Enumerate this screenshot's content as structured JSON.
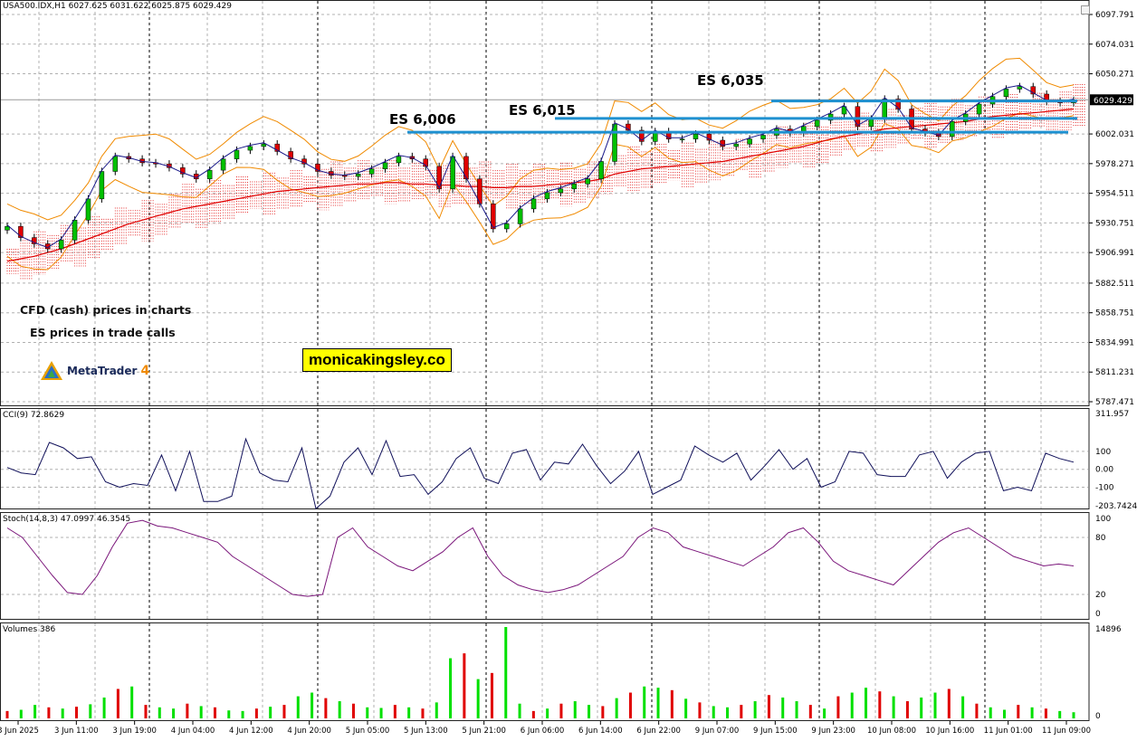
{
  "header": {
    "symbol_line": "USA500.IDX,H1  6027.625 6031.622 6025.875 6029.429"
  },
  "price_axis": {
    "labels": [
      "6097.791",
      "6074.031",
      "6050.271",
      "6029.429",
      "6002.031",
      "5978.271",
      "5954.511",
      "5930.751",
      "5906.991",
      "5882.511",
      "5858.751",
      "5834.991",
      "5811.231",
      "5787.471"
    ],
    "current": "6029.429"
  },
  "trade_calls": [
    {
      "label": "ES 6,006",
      "level": 6003.4
    },
    {
      "label": "ES 6,015",
      "level": 6014.5
    },
    {
      "label": "ES 6,035",
      "level": 6028.5
    }
  ],
  "notes": {
    "line1": "CFD (cash) prices in charts",
    "line2": "ES prices in trade calls"
  },
  "brand": {
    "site": "monicakingsley.co",
    "platform": "MetaTrader",
    "platform_version": "4"
  },
  "cci": {
    "title": "CCI(9) 72.8629",
    "labels": [
      "311.957",
      "100",
      "0.00",
      "-100",
      "-203.7424"
    ]
  },
  "stoch": {
    "title": "Stoch(14,8,3) 47.0997 46.3545",
    "labels": [
      "100",
      "80",
      "20",
      "0"
    ]
  },
  "volumes": {
    "title": "Volumes 386",
    "labels": [
      "14896",
      "0"
    ]
  },
  "time_axis": [
    "3 Jun 2025",
    "3 Jun 11:00",
    "3 Jun 19:00",
    "4 Jun 04:00",
    "4 Jun 12:00",
    "4 Jun 20:00",
    "5 Jun 05:00",
    "5 Jun 13:00",
    "5 Jun 21:00",
    "6 Jun 06:00",
    "6 Jun 14:00",
    "6 Jun 22:00",
    "9 Jun 07:00",
    "9 Jun 15:00",
    "9 Jun 23:00",
    "10 Jun 08:00",
    "10 Jun 16:00",
    "11 Jun 01:00",
    "11 Jun 09:00"
  ],
  "colors": {
    "bull": "#00c000",
    "bear": "#e00000",
    "bands": "#f08a00",
    "ma": "#e00000",
    "fast_ma": "#1a1a8a",
    "cloud": "#e00000",
    "level": "#1e90d0",
    "cci": "#10105a",
    "stoch": "#7a157a",
    "grid": "#b0b0b0"
  },
  "chart_data": {
    "type": "candlestick",
    "price_range": [
      5787.471,
      6097.791
    ],
    "close_path": [
      5928,
      5919,
      5914,
      5910,
      5917,
      5933,
      5950,
      5972,
      5984,
      5982,
      5979,
      5978,
      5975,
      5970,
      5966,
      5973,
      5982,
      5989,
      5992,
      5994,
      5988,
      5982,
      5978,
      5972,
      5969,
      5968,
      5970,
      5974,
      5979,
      5984,
      5982,
      5976,
      5958,
      5984,
      5966,
      5946,
      5926,
      5930,
      5942,
      5950,
      5955,
      5958,
      5962,
      5966,
      5980,
      6010,
      6005,
      5996,
      6004,
      5998,
      5998,
      6002,
      5997,
      5992,
      5994,
      5998,
      6001,
      6006,
      6003,
      6008,
      6013,
      6018,
      6024,
      6008,
      6014,
      6030,
      6022,
      6006,
      6003,
      6000,
      6012,
      6018,
      6026,
      6032,
      6038,
      6040,
      6034,
      6028,
      6027,
      6029
    ],
    "ma_path": [
      5900,
      5902,
      5904,
      5907,
      5910,
      5914,
      5918,
      5922,
      5926,
      5930,
      5933,
      5936,
      5939,
      5942,
      5944,
      5946,
      5948,
      5950,
      5952,
      5954,
      5956,
      5957,
      5958,
      5959,
      5960,
      5961,
      5962,
      5962,
      5963,
      5963,
      5962,
      5962,
      5961,
      5961,
      5960,
      5960,
      5959,
      5959,
      5960,
      5960,
      5961,
      5962,
      5963,
      5964,
      5966,
      5970,
      5972,
      5974,
      5975,
      5976,
      5977,
      5978,
      5979,
      5980,
      5982,
      5984,
      5986,
      5988,
      5990,
      5992,
      5995,
      5998,
      6000,
      6002,
      6004,
      6006,
      6007,
      6008,
      6009,
      6010,
      6011,
      6012,
      6014,
      6016,
      6017,
      6018,
      6019,
      6020,
      6021,
      6022
    ],
    "cci_path": [
      10,
      -20,
      -30,
      150,
      120,
      60,
      70,
      -70,
      -100,
      -80,
      -90,
      80,
      -120,
      100,
      -180,
      -180,
      -150,
      170,
      -20,
      -60,
      -70,
      120,
      -220,
      -150,
      40,
      120,
      -30,
      160,
      -40,
      -30,
      -140,
      -70,
      60,
      120,
      -50,
      -80,
      90,
      110,
      -60,
      40,
      30,
      140,
      20,
      -80,
      -10,
      100,
      -140,
      -100,
      -60,
      130,
      80,
      40,
      90,
      -60,
      20,
      110,
      0,
      60,
      -100,
      -70,
      100,
      90,
      -30,
      -40,
      -40,
      80,
      100,
      -50,
      40,
      90,
      100,
      -120,
      -100,
      -120,
      90,
      60,
      40
    ],
    "stoch_path": [
      90,
      80,
      60,
      40,
      22,
      20,
      40,
      70,
      95,
      98,
      92,
      90,
      85,
      80,
      75,
      60,
      50,
      40,
      30,
      20,
      18,
      20,
      80,
      90,
      70,
      60,
      50,
      45,
      55,
      65,
      80,
      90,
      60,
      40,
      30,
      25,
      22,
      25,
      30,
      40,
      50,
      60,
      80,
      90,
      85,
      70,
      65,
      60,
      55,
      50,
      60,
      70,
      85,
      90,
      75,
      55,
      45,
      40,
      35,
      30,
      45,
      60,
      75,
      85,
      90,
      80,
      70,
      60,
      55,
      50,
      52,
      50
    ],
    "volume_path": [
      1200,
      1400,
      2200,
      1800,
      1600,
      1900,
      2300,
      3400,
      4800,
      5200,
      2200,
      1800,
      1600,
      2400,
      2000,
      1800,
      1300,
      1200,
      1600,
      1900,
      2200,
      3600,
      4200,
      3300,
      2800,
      2400,
      1800,
      1700,
      2200,
      1800,
      1600,
      2600,
      9800,
      10600,
      6400,
      7400,
      14896,
      2400,
      1200,
      1600,
      2400,
      2800,
      2200,
      2000,
      3300,
      4200,
      5200,
      5000,
      4600,
      3200,
      2600,
      2000,
      1800,
      2200,
      2800,
      3800,
      3400,
      2800,
      2200,
      1600,
      3600,
      4200,
      5000,
      4400,
      3600,
      2800,
      3400,
      4200,
      4800,
      3600,
      2400,
      1800,
      1400,
      2200,
      1800,
      1600,
      1200,
      1000
    ]
  }
}
